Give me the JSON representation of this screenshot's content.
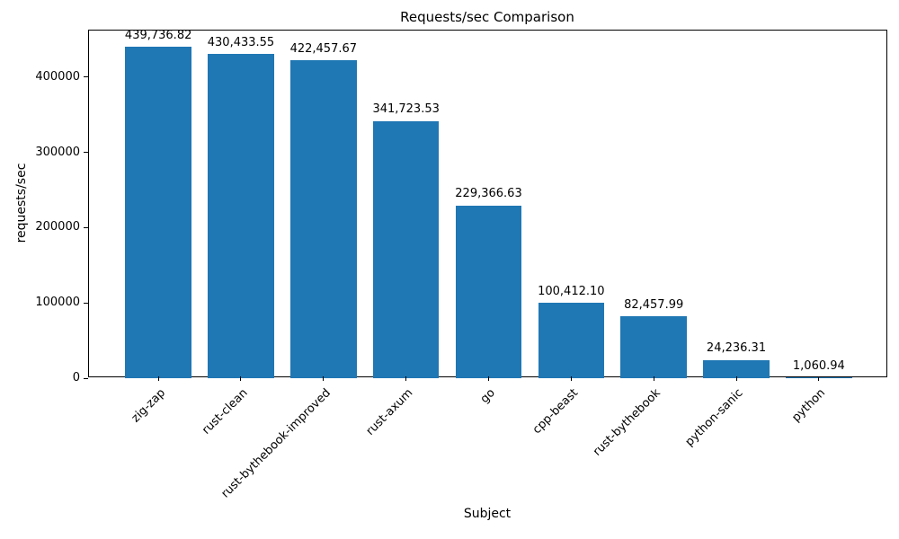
{
  "chart_data": {
    "type": "bar",
    "title": "Requests/sec Comparison",
    "xlabel": "Subject",
    "ylabel": "requests/sec",
    "categories": [
      "zig-zap",
      "rust-clean",
      "rust-bythebook-improved",
      "rust-axum",
      "go",
      "cpp-beast",
      "rust-bythebook",
      "python-sanic",
      "python"
    ],
    "values": [
      439736.82,
      430433.55,
      422457.67,
      341723.53,
      229366.63,
      100412.1,
      82457.99,
      24236.31,
      1060.94
    ],
    "value_labels": [
      "439,736.82",
      "430,433.55",
      "422,457.67",
      "341,723.53",
      "229,366.63",
      "100,412.10",
      "82,457.99",
      "24,236.31",
      "1,060.94"
    ],
    "yticks": [
      0,
      100000,
      200000,
      300000,
      400000
    ],
    "ytick_labels": [
      "0",
      "100000",
      "200000",
      "300000",
      "400000"
    ],
    "ylim": [
      0,
      461723.66
    ],
    "bar_color": "#1f77b4",
    "text_color": "#000000",
    "grid": false,
    "legend": null,
    "x_tick_label_rotation_deg": 45
  }
}
